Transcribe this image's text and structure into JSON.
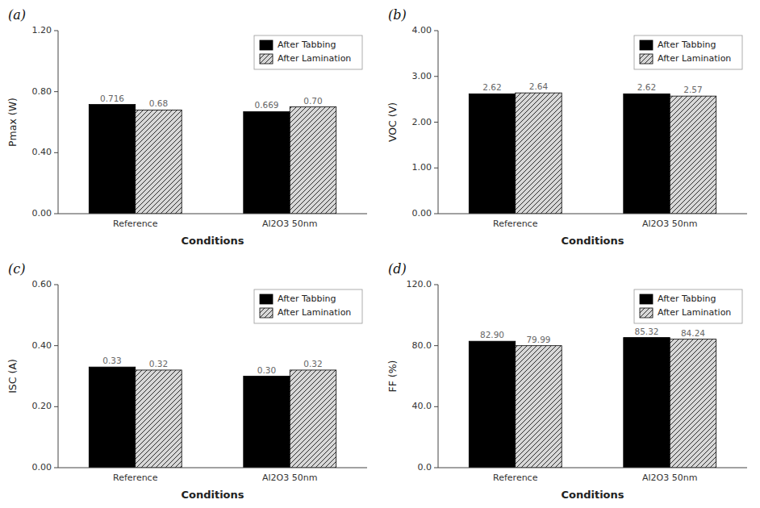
{
  "chart_data": [
    {
      "type": "bar",
      "title": "(a)",
      "x_label": "Conditions",
      "y_label": "Pmax (W)",
      "categories": [
        "Reference",
        "Al2O3 50nm"
      ],
      "series": [
        {
          "name": "After Tabbing",
          "color": "#000000",
          "values": [
            0.716,
            0.669
          ],
          "value_labels": [
            "0.716",
            "0.669"
          ]
        },
        {
          "name": "After Lamination",
          "color": "#d8d8d8",
          "values": [
            0.68,
            0.7
          ],
          "value_labels": [
            "0.68",
            "0.70"
          ]
        }
      ],
      "ylim": [
        0,
        1.2
      ],
      "yticks": [
        {
          "value": 0,
          "label": "0.00"
        },
        {
          "value": 0.4,
          "label": "0.40"
        },
        {
          "value": 0.8,
          "label": "0.80"
        },
        {
          "value": 1.2,
          "label": "1.20"
        }
      ],
      "data_labels": true,
      "legend": "upper right",
      "grid": false
    },
    {
      "type": "bar",
      "title": "(b)",
      "x_label": "Conditions",
      "y_label": "VOC (V)",
      "categories": [
        "Reference",
        "Al2O3 50nm"
      ],
      "series": [
        {
          "name": "After Tabbing",
          "color": "#000000",
          "values": [
            2.62,
            2.62
          ],
          "value_labels": [
            "2.62",
            "2.62"
          ]
        },
        {
          "name": "After Lamination",
          "color": "#d8d8d8",
          "values": [
            2.64,
            2.57
          ],
          "value_labels": [
            "2.64",
            "2.57"
          ]
        }
      ],
      "ylim": [
        0,
        4.0
      ],
      "yticks": [
        {
          "value": 0,
          "label": "0.00"
        },
        {
          "value": 1,
          "label": "1.00"
        },
        {
          "value": 2,
          "label": "2.00"
        },
        {
          "value": 3,
          "label": "3.00"
        },
        {
          "value": 4,
          "label": "4.00"
        }
      ],
      "data_labels": true,
      "legend": "upper right",
      "grid": false
    },
    {
      "type": "bar",
      "title": "(c)",
      "x_label": "Conditions",
      "y_label": "ISC (A)",
      "categories": [
        "Reference",
        "Al2O3 50nm"
      ],
      "series": [
        {
          "name": "After Tabbing",
          "color": "#000000",
          "values": [
            0.33,
            0.3
          ],
          "value_labels": [
            "0.33",
            "0.30"
          ]
        },
        {
          "name": "After Lamination",
          "color": "#d8d8d8",
          "values": [
            0.32,
            0.32
          ],
          "value_labels": [
            "0.32",
            "0.32"
          ]
        }
      ],
      "ylim": [
        0,
        0.6
      ],
      "yticks": [
        {
          "value": 0,
          "label": "0.00"
        },
        {
          "value": 0.2,
          "label": "0.20"
        },
        {
          "value": 0.4,
          "label": "0.40"
        },
        {
          "value": 0.6,
          "label": "0.60"
        }
      ],
      "data_labels": true,
      "legend": "upper right",
      "grid": false
    },
    {
      "type": "bar",
      "title": "(d)",
      "x_label": "Conditions",
      "y_label": "FF (%)",
      "categories": [
        "Reference",
        "Al2O3 50nm"
      ],
      "series": [
        {
          "name": "After Tabbing",
          "color": "#000000",
          "values": [
            82.9,
            85.32
          ],
          "value_labels": [
            "82.90",
            "85.32"
          ]
        },
        {
          "name": "After Lamination",
          "color": "#d8d8d8",
          "values": [
            79.99,
            84.24
          ],
          "value_labels": [
            "79.99",
            "84.24"
          ]
        }
      ],
      "ylim": [
        0,
        120.0
      ],
      "yticks": [
        {
          "value": 0,
          "label": "0.0"
        },
        {
          "value": 40,
          "label": "40.0"
        },
        {
          "value": 80,
          "label": "80.0"
        },
        {
          "value": 120,
          "label": "120.0"
        }
      ],
      "data_labels": true,
      "legend": "upper right",
      "grid": false
    }
  ]
}
